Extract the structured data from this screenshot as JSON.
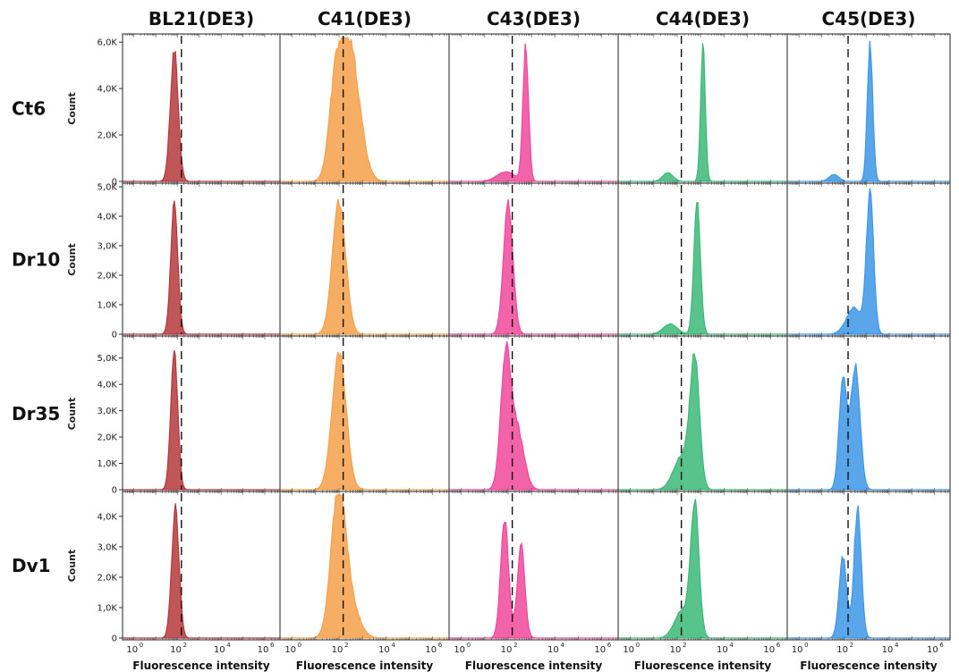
{
  "chart_data": {
    "type": "area",
    "title": "",
    "layout": "5 columns x 4 rows grid of fluorescence histograms",
    "columns": [
      "BL21(DE3)",
      "C41(DE3)",
      "C43(DE3)",
      "C44(DE3)",
      "C45(DE3)"
    ],
    "rows": [
      "Ct6",
      "Dr10",
      "Dr35",
      "Dv1"
    ],
    "xlabel": "Fluorescence intensity",
    "ylabel": "Count",
    "xscale": "log",
    "xlim": [
      0.3,
      5000000
    ],
    "x_tick_labels": [
      {
        "base": "10",
        "exp": "0",
        "value": 1
      },
      {
        "base": "10",
        "exp": "2",
        "value": 100
      },
      {
        "base": "10",
        "exp": "4",
        "value": 10000
      },
      {
        "base": "10",
        "exp": "6",
        "value": 1000000
      }
    ],
    "threshold_line_x": 150,
    "grid": false,
    "colors": {
      "BL21(DE3)": "#b5383b",
      "C41(DE3)": "#f5a04a",
      "C43(DE3)": "#f0489b",
      "C44(DE3)": "#3cb878",
      "C45(DE3)": "#3d96e8"
    },
    "row_panels": [
      {
        "row": "Ct6",
        "ylim": [
          0,
          6200
        ],
        "yticks": [
          {
            "label": "0",
            "value": 0
          },
          {
            "label": "2,0K",
            "value": 2000
          },
          {
            "label": "4,0K",
            "value": 4000
          },
          {
            "label": "6,0K",
            "value": 6000
          }
        ]
      },
      {
        "row": "Dr10",
        "ylim": [
          0,
          5000
        ],
        "yticks": [
          {
            "label": "0",
            "value": 0
          },
          {
            "label": "1,0K",
            "value": 1000
          },
          {
            "label": "2,0K",
            "value": 2000
          },
          {
            "label": "3,0K",
            "value": 3000
          },
          {
            "label": "4,0K",
            "value": 4000
          },
          {
            "label": "5,0K",
            "value": 5000
          }
        ]
      },
      {
        "row": "Dr35",
        "ylim": [
          0,
          5700
        ],
        "yticks": [
          {
            "label": "0",
            "value": 0
          },
          {
            "label": "1,0K",
            "value": 1000
          },
          {
            "label": "2,0K",
            "value": 2000
          },
          {
            "label": "3,0K",
            "value": 3000
          },
          {
            "label": "4,0K",
            "value": 4000
          },
          {
            "label": "5,0K",
            "value": 5000
          }
        ]
      },
      {
        "row": "Dv1",
        "ylim": [
          0,
          4700
        ],
        "yticks": [
          {
            "label": "0",
            "value": 0
          },
          {
            "label": "1,0K",
            "value": 1000
          },
          {
            "label": "2,0K",
            "value": 2000
          },
          {
            "label": "3,0K",
            "value": 3000
          },
          {
            "label": "4,0K",
            "value": 4000
          }
        ]
      }
    ],
    "histograms": [
      [
        {
          "sample": "BL21(DE3)",
          "peaks": [
            {
              "log10_x": 1.85,
              "count": 5700,
              "width": 0.18
            }
          ]
        },
        {
          "sample": "C41(DE3)",
          "peaks": [
            {
              "log10_x": 2.45,
              "count": 5900,
              "width": 0.42
            },
            {
              "log10_x": 1.85,
              "count": 3300,
              "width": 0.28
            }
          ]
        },
        {
          "sample": "C43(DE3)",
          "peaks": [
            {
              "log10_x": 2.75,
              "count": 5850,
              "width": 0.12
            },
            {
              "log10_x": 1.9,
              "count": 420,
              "width": 0.38
            }
          ]
        },
        {
          "sample": "C44(DE3)",
          "peaks": [
            {
              "log10_x": 3.1,
              "count": 5900,
              "width": 0.1
            },
            {
              "log10_x": 1.6,
              "count": 380,
              "width": 0.22
            }
          ]
        },
        {
          "sample": "C45(DE3)",
          "peaks": [
            {
              "log10_x": 3.15,
              "count": 5900,
              "width": 0.12
            },
            {
              "log10_x": 1.55,
              "count": 300,
              "width": 0.22
            }
          ]
        }
      ],
      [
        {
          "sample": "BL21(DE3)",
          "peaks": [
            {
              "log10_x": 1.85,
              "count": 4500,
              "width": 0.16
            }
          ]
        },
        {
          "sample": "C41(DE3)",
          "peaks": [
            {
              "log10_x": 2.0,
              "count": 4600,
              "width": 0.28
            }
          ]
        },
        {
          "sample": "C43(DE3)",
          "peaks": [
            {
              "log10_x": 2.0,
              "count": 4550,
              "width": 0.2
            }
          ]
        },
        {
          "sample": "C44(DE3)",
          "peaks": [
            {
              "log10_x": 2.85,
              "count": 4500,
              "width": 0.14
            },
            {
              "log10_x": 1.7,
              "count": 350,
              "width": 0.3
            }
          ]
        },
        {
          "sample": "C45(DE3)",
          "peaks": [
            {
              "log10_x": 3.15,
              "count": 4700,
              "width": 0.16
            },
            {
              "log10_x": 2.45,
              "count": 900,
              "width": 0.35
            }
          ]
        }
      ],
      [
        {
          "sample": "BL21(DE3)",
          "peaks": [
            {
              "log10_x": 1.85,
              "count": 5300,
              "width": 0.16
            }
          ]
        },
        {
          "sample": "C41(DE3)",
          "peaks": [
            {
              "log10_x": 2.0,
              "count": 5300,
              "width": 0.3
            }
          ]
        },
        {
          "sample": "C43(DE3)",
          "peaks": [
            {
              "log10_x": 1.9,
              "count": 5000,
              "width": 0.22
            },
            {
              "log10_x": 2.4,
              "count": 2200,
              "width": 0.28
            }
          ]
        },
        {
          "sample": "C44(DE3)",
          "peaks": [
            {
              "log10_x": 2.75,
              "count": 4900,
              "width": 0.2
            },
            {
              "log10_x": 2.2,
              "count": 1300,
              "width": 0.35
            }
          ]
        },
        {
          "sample": "C45(DE3)",
          "peaks": [
            {
              "log10_x": 2.5,
              "count": 4800,
              "width": 0.2
            },
            {
              "log10_x": 1.95,
              "count": 4300,
              "width": 0.17
            }
          ]
        }
      ],
      [
        {
          "sample": "BL21(DE3)",
          "peaks": [
            {
              "log10_x": 1.9,
              "count": 4300,
              "width": 0.17
            }
          ]
        },
        {
          "sample": "C41(DE3)",
          "peaks": [
            {
              "log10_x": 1.95,
              "count": 4400,
              "width": 0.3
            },
            {
              "log10_x": 2.4,
              "count": 1300,
              "width": 0.4
            }
          ]
        },
        {
          "sample": "C43(DE3)",
          "peaks": [
            {
              "log10_x": 1.85,
              "count": 3900,
              "width": 0.17
            },
            {
              "log10_x": 2.55,
              "count": 3100,
              "width": 0.16
            }
          ]
        },
        {
          "sample": "C44(DE3)",
          "peaks": [
            {
              "log10_x": 2.75,
              "count": 4400,
              "width": 0.18
            },
            {
              "log10_x": 2.2,
              "count": 900,
              "width": 0.32
            }
          ]
        },
        {
          "sample": "C45(DE3)",
          "peaks": [
            {
              "log10_x": 2.6,
              "count": 4300,
              "width": 0.16
            },
            {
              "log10_x": 1.95,
              "count": 2700,
              "width": 0.17
            }
          ]
        }
      ]
    ]
  }
}
